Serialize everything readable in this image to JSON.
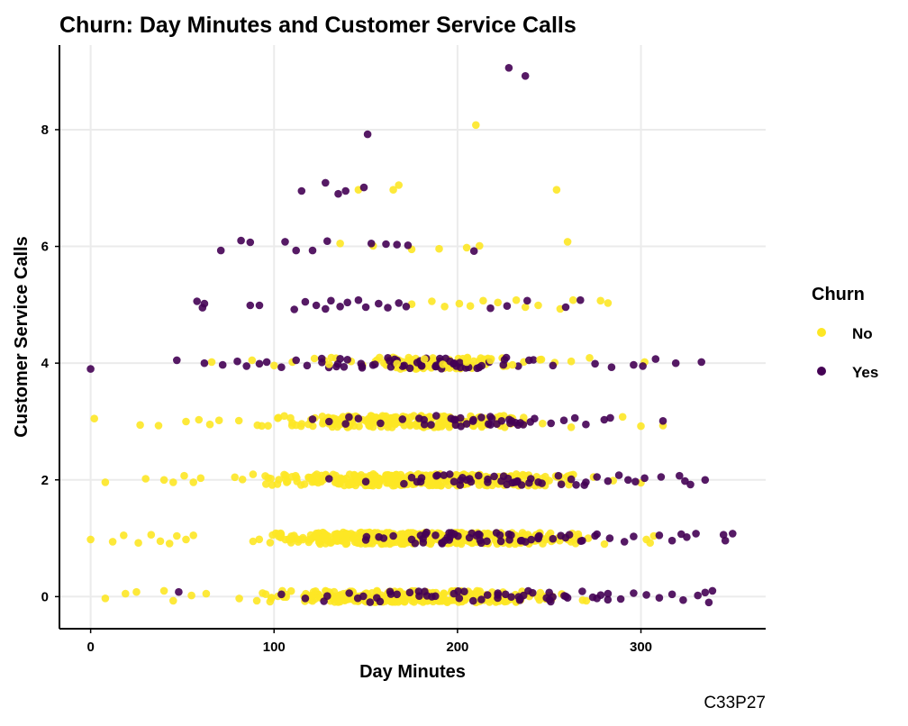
{
  "chart_data": {
    "type": "scatter",
    "title": "Churn: Day Minutes and Customer Service Calls",
    "xlabel": "Day Minutes",
    "ylabel": "Customer Service Calls",
    "xlim": [
      -17,
      368
    ],
    "ylim": [
      -0.55,
      9.45
    ],
    "x_ticks": [
      0,
      100,
      200,
      300
    ],
    "y_ticks": [
      0,
      2,
      4,
      6,
      8
    ],
    "grid": true,
    "jitter": "vertical jitter around integer call counts",
    "legend": {
      "title": "Churn",
      "position": "right"
    },
    "caption": "C33P27",
    "series": [
      {
        "name": "No",
        "color": "#FDE725",
        "points": [
          [
            0.0,
            0.98
          ],
          [
            8,
            -0.03
          ],
          [
            19,
            0.05
          ],
          [
            25,
            0.08
          ],
          [
            40,
            0.1
          ],
          [
            45,
            -0.07
          ],
          [
            55,
            0.02
          ],
          [
            63,
            0.05
          ],
          [
            210,
            8.08
          ],
          [
            254,
            6.97
          ],
          [
            260,
            6.08
          ],
          [
            165,
            6.97
          ],
          [
            168,
            7.05
          ],
          [
            146,
            6.97
          ],
          [
            136,
            6.05
          ],
          [
            154,
            6.01
          ],
          [
            175,
            5.95
          ],
          [
            190,
            5.96
          ],
          [
            205,
            5.98
          ],
          [
            212,
            6.01
          ],
          [
            2,
            3.05
          ],
          [
            27,
            2.94
          ],
          [
            37,
            2.93
          ],
          [
            52,
            3.0
          ],
          [
            59,
            3.03
          ],
          [
            65,
            2.95
          ],
          [
            70,
            3.02
          ],
          [
            290,
            3.08
          ],
          [
            300,
            2.92
          ],
          [
            312,
            2.93
          ],
          [
            8,
            1.96
          ],
          [
            30,
            2.02
          ],
          [
            40,
            2.0
          ],
          [
            45,
            1.96
          ],
          [
            51,
            2.07
          ],
          [
            56,
            1.96
          ],
          [
            60,
            2.03
          ],
          [
            300,
            1.95
          ],
          [
            12,
            0.94
          ],
          [
            18,
            1.05
          ],
          [
            26,
            0.92
          ],
          [
            33,
            1.06
          ],
          [
            38,
            0.95
          ],
          [
            43,
            0.91
          ],
          [
            47,
            1.04
          ],
          [
            52,
            0.98
          ],
          [
            56,
            1.05
          ],
          [
            303,
            0.98
          ],
          [
            307,
            1.04
          ],
          [
            305,
            0.92
          ],
          [
            201,
            5.02
          ],
          [
            207,
            4.98
          ],
          [
            214,
            5.07
          ],
          [
            222,
            5.04
          ],
          [
            232,
            5.08
          ],
          [
            237,
            4.96
          ],
          [
            244,
            4.99
          ],
          [
            256,
            4.93
          ],
          [
            263,
            5.08
          ],
          [
            278,
            5.07
          ],
          [
            282,
            5.03
          ],
          [
            193,
            4.97
          ],
          [
            186,
            5.06
          ],
          [
            175,
            5.01
          ],
          [
            245,
            4.06
          ],
          [
            253,
            4.01
          ],
          [
            262,
            4.03
          ],
          [
            272,
            4.09
          ],
          [
            230,
            3.97
          ],
          [
            218,
            4.05
          ],
          [
            205,
            4.02
          ],
          [
            192,
            3.98
          ],
          [
            182,
            4.07
          ],
          [
            167,
            3.99
          ],
          [
            156,
            4.05
          ],
          [
            142,
            4.03
          ],
          [
            130,
            3.98
          ],
          [
            122,
            4.08
          ],
          [
            110,
            4.02
          ],
          [
            100,
            3.96
          ],
          [
            88,
            4.05
          ],
          [
            66,
            4.02
          ],
          [
            302,
            4.02
          ]
        ]
      },
      {
        "name": "Yes",
        "color": "#440154",
        "points": [
          [
            228,
            9.06
          ],
          [
            237,
            8.92
          ],
          [
            151,
            7.92
          ],
          [
            115,
            6.95
          ],
          [
            128,
            7.09
          ],
          [
            135,
            6.9
          ],
          [
            139,
            6.95
          ],
          [
            149,
            7.01
          ],
          [
            71,
            5.93
          ],
          [
            82,
            6.1
          ],
          [
            87,
            6.07
          ],
          [
            106,
            6.08
          ],
          [
            112,
            5.93
          ],
          [
            121,
            5.93
          ],
          [
            129,
            6.09
          ],
          [
            153,
            6.05
          ],
          [
            161,
            6.04
          ],
          [
            167,
            6.03
          ],
          [
            173,
            6.02
          ],
          [
            209,
            5.92
          ],
          [
            58,
            5.06
          ],
          [
            61,
            4.95
          ],
          [
            62,
            5.02
          ],
          [
            87,
            4.99
          ],
          [
            92,
            4.99
          ],
          [
            111,
            4.92
          ],
          [
            117,
            5.05
          ],
          [
            123,
            4.99
          ],
          [
            128,
            4.93
          ],
          [
            131,
            5.07
          ],
          [
            136,
            4.97
          ],
          [
            140,
            5.04
          ],
          [
            146,
            5.08
          ],
          [
            150,
            4.96
          ],
          [
            157,
            5.02
          ],
          [
            162,
            4.95
          ],
          [
            168,
            5.03
          ],
          [
            172,
            4.97
          ],
          [
            218,
            4.94
          ],
          [
            227,
            4.98
          ],
          [
            238,
            5.07
          ],
          [
            267,
            5.08
          ],
          [
            259,
            4.96
          ],
          [
            0,
            3.9
          ],
          [
            47,
            4.05
          ],
          [
            62,
            4.0
          ],
          [
            72,
            3.97
          ],
          [
            80,
            4.03
          ],
          [
            85,
            3.95
          ],
          [
            92,
            3.99
          ],
          [
            96,
            4.02
          ],
          [
            104,
            3.93
          ],
          [
            112,
            4.05
          ],
          [
            118,
            3.96
          ],
          [
            126,
            4.08
          ],
          [
            134,
            3.94
          ],
          [
            140,
            4.06
          ],
          [
            148,
            3.92
          ],
          [
            155,
            3.98
          ],
          [
            163,
            4.04
          ],
          [
            171,
            3.96
          ],
          [
            178,
            4.01
          ],
          [
            188,
            3.94
          ],
          [
            196,
            4.03
          ],
          [
            225,
            3.97
          ],
          [
            239,
            4.05
          ],
          [
            252,
            3.96
          ],
          [
            275,
            3.99
          ],
          [
            284,
            3.93
          ],
          [
            296,
            3.97
          ],
          [
            301,
            3.95
          ],
          [
            308,
            4.07
          ],
          [
            319,
            4.0
          ],
          [
            333,
            4.02
          ],
          [
            121,
            3.04
          ],
          [
            130,
            3.0
          ],
          [
            139,
            2.96
          ],
          [
            146,
            3.05
          ],
          [
            158,
            2.97
          ],
          [
            170,
            3.04
          ],
          [
            182,
            2.95
          ],
          [
            198,
            3.03
          ],
          [
            205,
            2.96
          ],
          [
            213,
            3.07
          ],
          [
            224,
            3.01
          ],
          [
            233,
            2.94
          ],
          [
            242,
            3.05
          ],
          [
            251,
            2.97
          ],
          [
            258,
            3.02
          ],
          [
            264,
            3.06
          ],
          [
            270,
            2.95
          ],
          [
            280,
            3.03
          ],
          [
            312,
            3.01
          ],
          [
            130,
            2.02
          ],
          [
            150,
            1.97
          ],
          [
            175,
            2.04
          ],
          [
            205,
            2.0
          ],
          [
            220,
            2.06
          ],
          [
            231,
            1.96
          ],
          [
            240,
            2.02
          ],
          [
            246,
            1.94
          ],
          [
            255,
            2.07
          ],
          [
            262,
            2.01
          ],
          [
            270,
            1.96
          ],
          [
            276,
            2.05
          ],
          [
            282,
            1.98
          ],
          [
            288,
            2.08
          ],
          [
            293,
            2.0
          ],
          [
            297,
            1.97
          ],
          [
            302,
            2.03
          ],
          [
            311,
            2.05
          ],
          [
            321,
            2.07
          ],
          [
            324,
            1.98
          ],
          [
            327,
            1.92
          ],
          [
            335,
            2.0
          ],
          [
            150,
            0.97
          ],
          [
            165,
            1.04
          ],
          [
            175,
            0.98
          ],
          [
            188,
            1.05
          ],
          [
            216,
            0.95
          ],
          [
            228,
            1.07
          ],
          [
            235,
            0.96
          ],
          [
            244,
            1.02
          ],
          [
            252,
            0.99
          ],
          [
            261,
            1.06
          ],
          [
            268,
            0.96
          ],
          [
            276,
            1.07
          ],
          [
            283,
            1.0
          ],
          [
            291,
            0.94
          ],
          [
            296,
            1.03
          ],
          [
            310,
            1.05
          ],
          [
            317,
            0.96
          ],
          [
            322,
            1.07
          ],
          [
            325,
            1.02
          ],
          [
            330,
            1.08
          ],
          [
            345,
            1.06
          ],
          [
            346,
            0.96
          ],
          [
            350,
            1.08
          ],
          [
            48,
            0.08
          ],
          [
            104,
            0.04
          ],
          [
            117,
            -0.03
          ],
          [
            129,
            0.01
          ],
          [
            141,
            0.06
          ],
          [
            156,
            -0.02
          ],
          [
            167,
            0.04
          ],
          [
            174,
            0.07
          ],
          [
            186,
            0.0
          ],
          [
            198,
            0.05
          ],
          [
            213,
            -0.05
          ],
          [
            222,
            0.06
          ],
          [
            236,
            0.02
          ],
          [
            250,
            0.07
          ],
          [
            260,
            -0.02
          ],
          [
            268,
            0.09
          ],
          [
            276,
            -0.03
          ],
          [
            282,
            0.05
          ],
          [
            289,
            -0.04
          ],
          [
            296,
            0.06
          ],
          [
            303,
            0.03
          ],
          [
            310,
            -0.02
          ],
          [
            317,
            0.04
          ],
          [
            323,
            -0.06
          ],
          [
            331,
            0.02
          ],
          [
            335,
            0.07
          ],
          [
            339,
            0.1
          ],
          [
            337,
            -0.1
          ]
        ]
      }
    ],
    "density_bands": [
      {
        "series": "No",
        "y": 3,
        "x_range": [
          70,
          270
        ],
        "count": 220
      },
      {
        "series": "No",
        "y": 2,
        "x_range": [
          60,
          300
        ],
        "count": 320
      },
      {
        "series": "No",
        "y": 1,
        "x_range": [
          55,
          300
        ],
        "count": 420
      },
      {
        "series": "No",
        "y": 0,
        "x_range": [
          60,
          290
        ],
        "count": 300
      },
      {
        "series": "No",
        "y": 4,
        "x_range": [
          120,
          260
        ],
        "count": 80
      },
      {
        "series": "Yes",
        "y": 2,
        "x_range": [
          120,
          300
        ],
        "count": 30
      },
      {
        "series": "Yes",
        "y": 1,
        "x_range": [
          130,
          310
        ],
        "count": 40
      },
      {
        "series": "Yes",
        "y": 0,
        "x_range": [
          100,
          320
        ],
        "count": 35
      },
      {
        "series": "Yes",
        "y": 3,
        "x_range": [
          120,
          290
        ],
        "count": 25
      },
      {
        "series": "Yes",
        "y": 4,
        "x_range": [
          110,
          260
        ],
        "count": 40
      }
    ]
  }
}
